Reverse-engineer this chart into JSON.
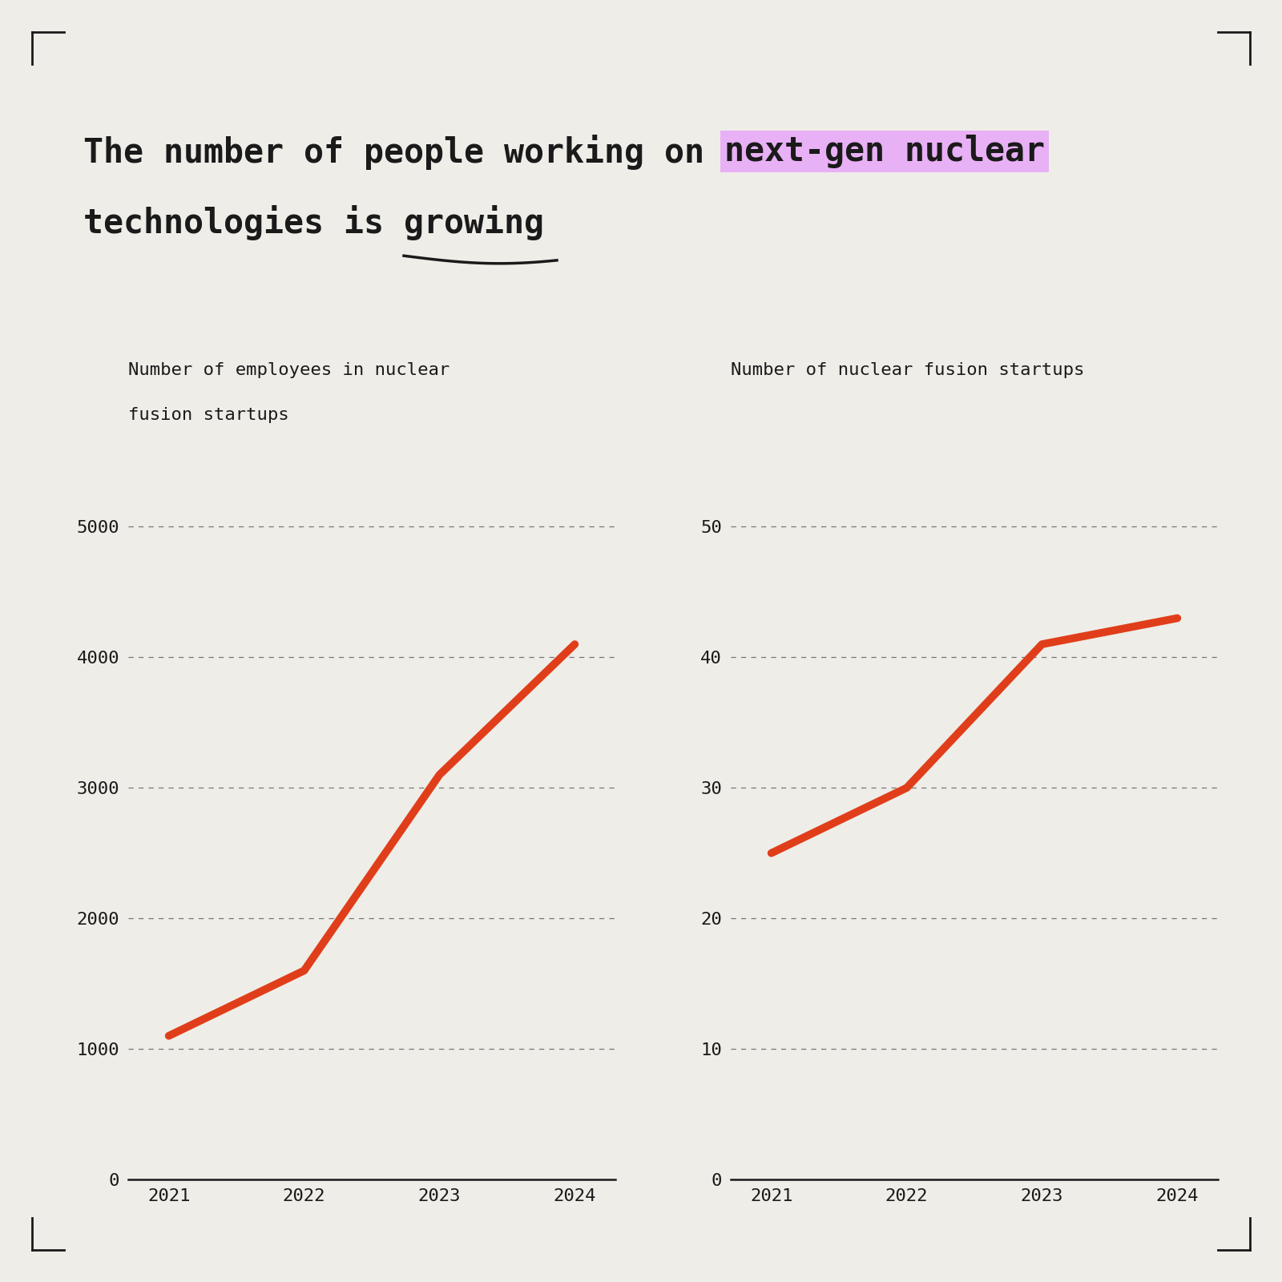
{
  "years": [
    2021,
    2022,
    2023,
    2024
  ],
  "employees": [
    1100,
    1600,
    3100,
    4100
  ],
  "startups": [
    25,
    30,
    41,
    43
  ],
  "bg_color": "#efede8",
  "line_color": "#e03e1a",
  "title_part1": "The number of people working on ",
  "title_highlight": "next-gen nuclear",
  "title_part2": "technologies is ",
  "title_underline": "growing",
  "highlight_color": "#e8b0f5",
  "left_label_line1": "Number of employees in nuclear",
  "left_label_line2": "fusion startups",
  "right_label": "Number of nuclear fusion startups",
  "left_yticks": [
    0,
    1000,
    2000,
    3000,
    4000,
    5000
  ],
  "right_yticks": [
    0,
    10,
    20,
    30,
    40,
    50
  ],
  "left_ylim": [
    0,
    5500
  ],
  "right_ylim": [
    0,
    55
  ],
  "line_width": 7
}
